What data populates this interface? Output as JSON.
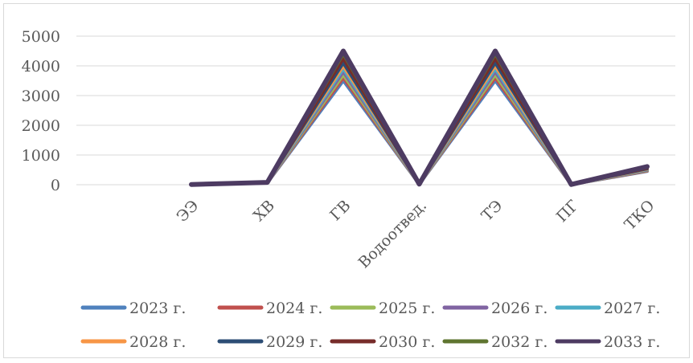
{
  "chart_data": {
    "type": "line",
    "title": "",
    "xlabel": "",
    "ylabel": "",
    "categories": [
      "ЭЭ",
      "ХВ",
      "ГВ",
      "Водоотвед.",
      "ТЭ",
      "ПГ",
      "ТКО"
    ],
    "ylim": [
      0,
      5000
    ],
    "yticks": [
      0,
      1000,
      2000,
      3000,
      4000,
      5000
    ],
    "grid": true,
    "legend_position": "bottom",
    "series": [
      {
        "name": "2023 г.",
        "color": "#4f81bd",
        "values": [
          5,
          60,
          3500,
          15,
          3500,
          5,
          450
        ]
      },
      {
        "name": "2024 г.",
        "color": "#c0504d",
        "values": [
          5,
          62,
          3600,
          15,
          3600,
          5,
          465
        ]
      },
      {
        "name": "2025 г.",
        "color": "#9bbb59",
        "values": [
          6,
          64,
          3700,
          16,
          3700,
          6,
          480
        ]
      },
      {
        "name": "2026 г.",
        "color": "#8064a2",
        "values": [
          6,
          66,
          3800,
          16,
          3800,
          6,
          495
        ]
      },
      {
        "name": "2027 г.",
        "color": "#4bacc6",
        "values": [
          6,
          68,
          3900,
          17,
          3900,
          6,
          510
        ]
      },
      {
        "name": "2028 г.",
        "color": "#f79646",
        "values": [
          7,
          70,
          4000,
          17,
          4000,
          7,
          525
        ]
      },
      {
        "name": "2029 г.",
        "color": "#2c4d75",
        "values": [
          7,
          72,
          4100,
          18,
          4100,
          7,
          540
        ]
      },
      {
        "name": "2030 г.",
        "color": "#772c2a",
        "values": [
          7,
          74,
          4250,
          18,
          4250,
          7,
          560
        ]
      },
      {
        "name": "2032 г.",
        "color": "#5f7530",
        "values": [
          8,
          76,
          4400,
          19,
          4400,
          8,
          585
        ]
      },
      {
        "name": "2033 г.",
        "color": "#4d3b62",
        "values": [
          8,
          78,
          4500,
          19,
          4500,
          8,
          610
        ]
      }
    ]
  }
}
